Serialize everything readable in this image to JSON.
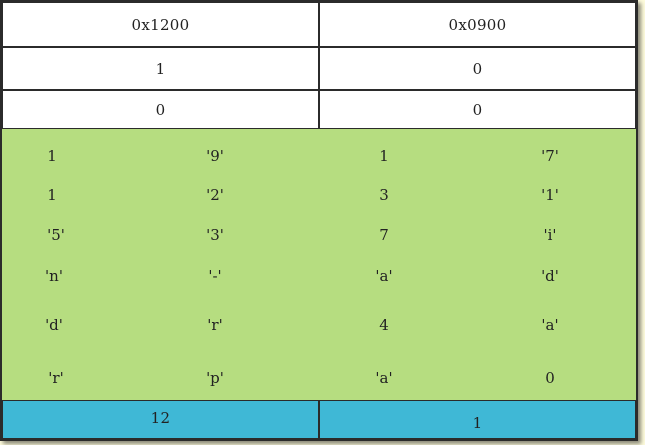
{
  "headers": [
    "0x1200",
    "0x0900"
  ],
  "rows": [
    [
      "1",
      "0"
    ],
    [
      "0",
      "0"
    ]
  ],
  "grid": [
    [
      "1",
      "'9'",
      "1",
      "'7'"
    ],
    [
      "1",
      "'2'",
      "3",
      "'1'"
    ],
    [
      "'5'",
      "'3'",
      "7",
      "'i'"
    ],
    [
      "'n'",
      "'-'",
      "'a'",
      "'d'"
    ],
    [
      "'d'",
      "'r'",
      "4",
      "'a'"
    ],
    [
      "'r'",
      "'p'",
      "'a'",
      "0"
    ]
  ],
  "footer": [
    "12",
    "1"
  ],
  "colors": {
    "cell": "#ffffff",
    "data_area": "#b6dd80",
    "footer": "#3fb8d6",
    "background": "#fdfbdc"
  }
}
